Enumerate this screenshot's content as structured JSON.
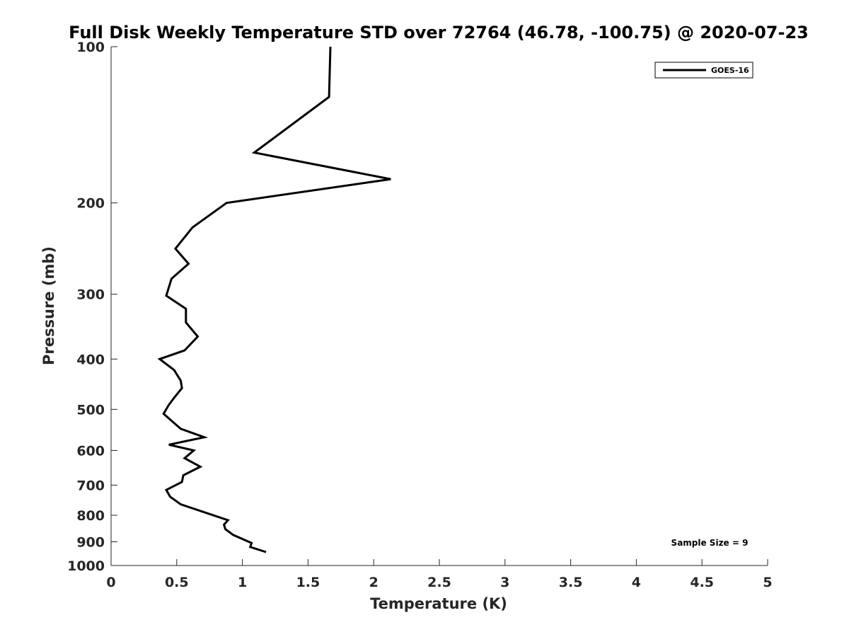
{
  "chart_data": {
    "type": "line",
    "title": "Full Disk Weekly Temperature STD over 72764 (46.78, -100.75) @ 2020-07-23",
    "xlabel": "Temperature (K)",
    "ylabel": "Pressure (mb)",
    "xlim": [
      0,
      5
    ],
    "ylim": [
      100,
      1000
    ],
    "y_scale": "log",
    "y_reversed": true,
    "xticks": [
      "0",
      "0.5",
      "1",
      "1.5",
      "2",
      "2.5",
      "3",
      "3.5",
      "4",
      "4.5",
      "5"
    ],
    "yticks": [
      "100",
      "200",
      "300",
      "400",
      "500",
      "600",
      "700",
      "800",
      "900",
      "1000"
    ],
    "grid": false,
    "legend": {
      "placement": "top-right",
      "entries": [
        "GOES-16"
      ]
    },
    "annotation": "Sample Size = 9",
    "series": [
      {
        "name": "GOES-16",
        "color": "#000000",
        "points": [
          [
            1.67,
            100
          ],
          [
            1.66,
            125
          ],
          [
            1.09,
            160
          ],
          [
            2.13,
            180
          ],
          [
            0.88,
            200
          ],
          [
            0.62,
            223
          ],
          [
            0.49,
            245
          ],
          [
            0.59,
            262
          ],
          [
            0.46,
            280
          ],
          [
            0.42,
            302
          ],
          [
            0.57,
            320
          ],
          [
            0.57,
            340
          ],
          [
            0.66,
            362
          ],
          [
            0.56,
            385
          ],
          [
            0.37,
            400
          ],
          [
            0.48,
            420
          ],
          [
            0.53,
            440
          ],
          [
            0.54,
            455
          ],
          [
            0.48,
            475
          ],
          [
            0.44,
            490
          ],
          [
            0.4,
            510
          ],
          [
            0.53,
            545
          ],
          [
            0.71,
            566
          ],
          [
            0.44,
            585
          ],
          [
            0.63,
            600
          ],
          [
            0.56,
            621
          ],
          [
            0.68,
            645
          ],
          [
            0.55,
            670
          ],
          [
            0.54,
            690
          ],
          [
            0.42,
            715
          ],
          [
            0.45,
            737
          ],
          [
            0.53,
            762
          ],
          [
            0.89,
            818
          ],
          [
            0.86,
            834
          ],
          [
            0.87,
            851
          ],
          [
            0.93,
            873
          ],
          [
            1.07,
            905
          ],
          [
            1.06,
            921
          ],
          [
            1.18,
            942
          ]
        ]
      }
    ]
  }
}
